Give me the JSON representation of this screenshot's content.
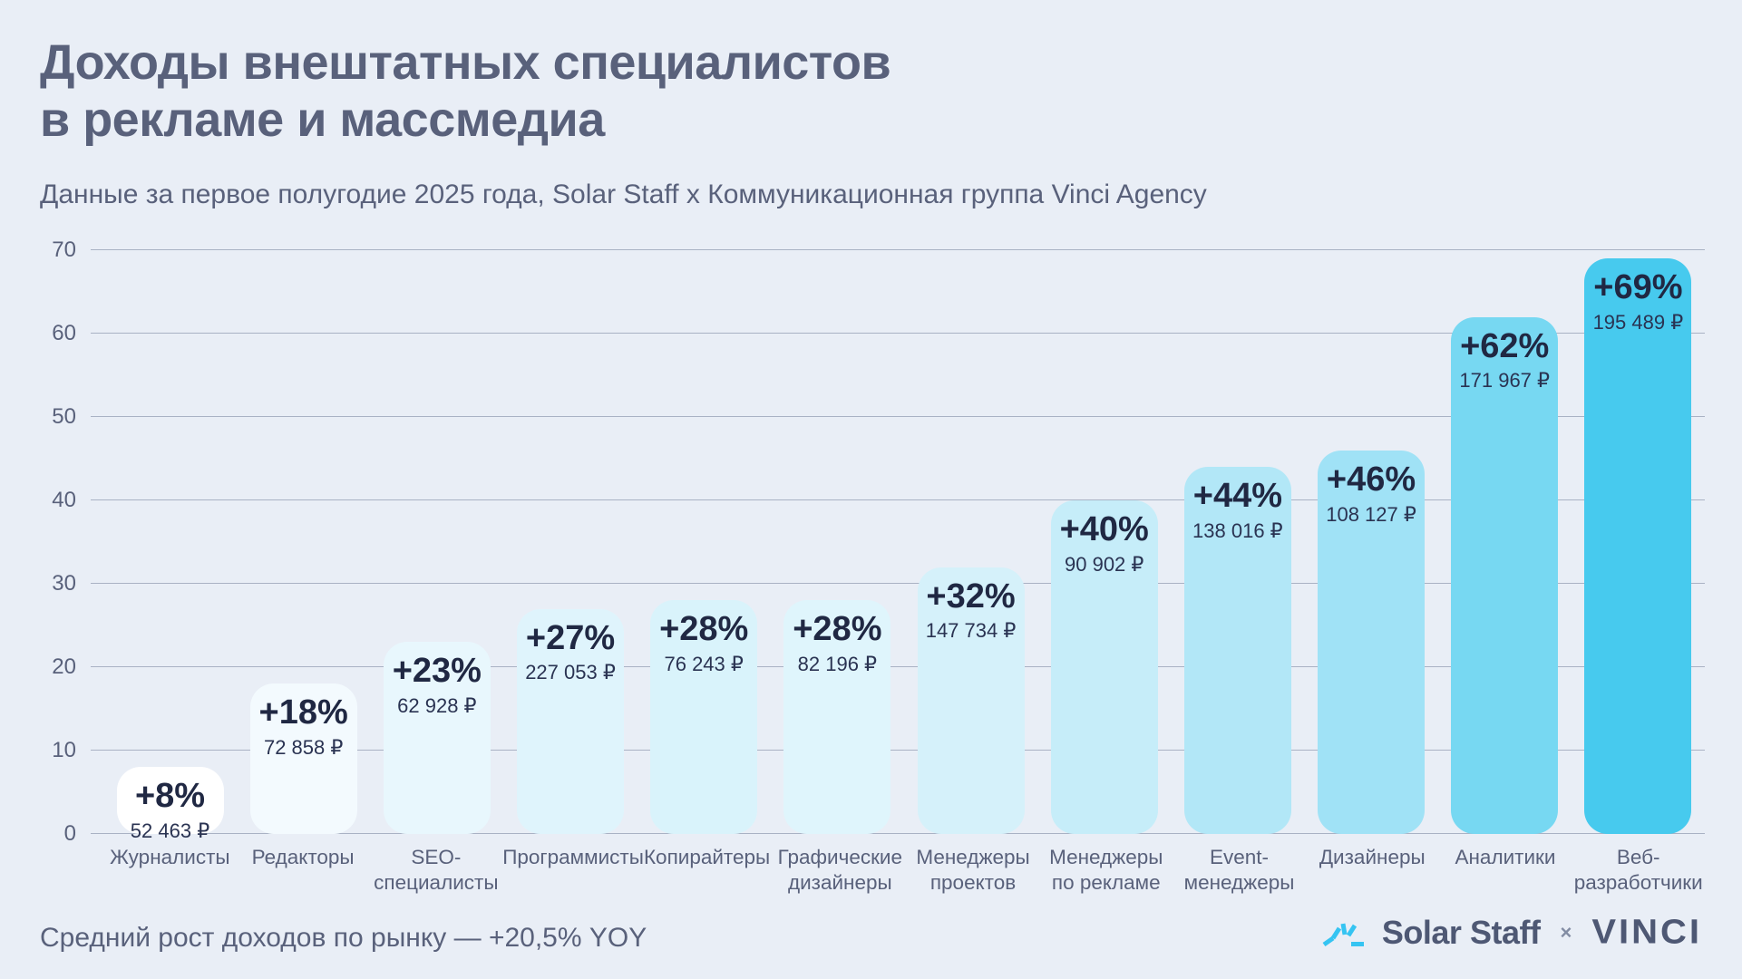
{
  "header": {
    "title_line1": "Доходы внештатных специалистов",
    "title_line2": "в рекламе и массмедиа",
    "subtitle": "Данные за первое полугодие 2025 года, Solar Staff x Коммуникационная группа Vinci Agency"
  },
  "chart_data": {
    "type": "bar",
    "title": "Доходы внештатных специалистов в рекламе и массмедиа",
    "subtitle": "Данные за первое полугодие 2025 года, Solar Staff x Коммуникационная группа Vinci Agency",
    "xlabel": "",
    "ylabel": "",
    "ylim": [
      0,
      70
    ],
    "yticks": [
      0,
      10,
      20,
      30,
      40,
      50,
      60,
      70
    ],
    "grid": true,
    "legend": "none",
    "categories": [
      "Журналисты",
      "Редакторы",
      "SEO-специалисты",
      "Программисты",
      "Копирайтеры",
      "Графические дизайнеры",
      "Менеджеры проектов",
      "Менеджеры по рекламе",
      "Event-менеджеры",
      "Дизайнеры",
      "Аналитики",
      "Веб-разработчики"
    ],
    "values": [
      8,
      18,
      23,
      27,
      28,
      28,
      32,
      40,
      44,
      46,
      62,
      69
    ],
    "labels_pct": [
      "+8%",
      "+18%",
      "+23%",
      "+27%",
      "+28%",
      "+28%",
      "+32%",
      "+40%",
      "+44%",
      "+46%",
      "+62%",
      "+69%"
    ],
    "labels_income": [
      "52 463 ₽",
      "72 858 ₽",
      "62 928 ₽",
      "227 053 ₽",
      "76 243 ₽",
      "82 196 ₽",
      "147 734 ₽",
      "90 902 ₽",
      "138 016 ₽",
      "108 127 ₽",
      "171 967 ₽",
      "195 489 ₽"
    ],
    "bar_colors": [
      "#FFFFFF",
      "#F3FAFE",
      "#E8F7FD",
      "#DFF4FC",
      "#D9F3FB",
      "#DFF5FC",
      "#D5F1FA",
      "#C6EDF9",
      "#B2E7F7",
      "#A0E2F6",
      "#77D8F2",
      "#47CAEE"
    ]
  },
  "footer": {
    "note": "Средний рост доходов по рынку — +20,5% YOY",
    "solar_staff_label": "Solar Staff",
    "separator": "×",
    "vinci_label": "VINCI"
  },
  "colors": {
    "background": "#E9EEF6",
    "text": "#59617B",
    "bar_text_dark": "#202843",
    "gridline": "#A9B2C4",
    "solar_icon_cyan": "#35C4F2",
    "logo_text": "#4E5874"
  }
}
